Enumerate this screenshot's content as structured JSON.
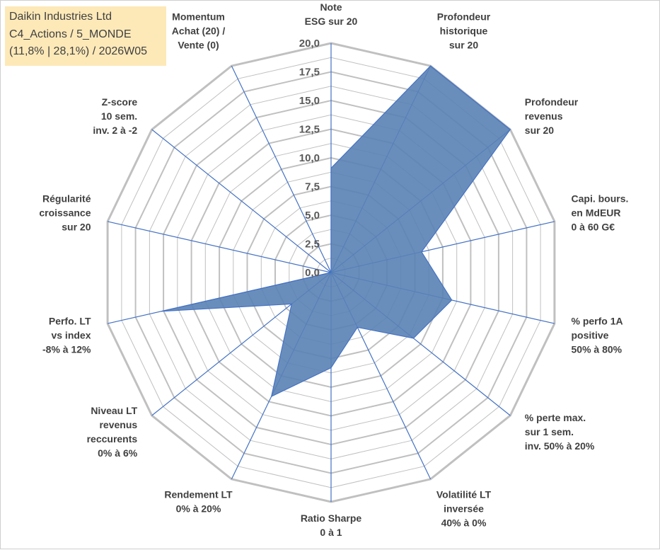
{
  "title_box": {
    "line1": "Daikin Industries Ltd",
    "line2": "C4_Actions / 5_MONDE",
    "line3": "(11,8% | 28,1%) / 2026W05"
  },
  "colors": {
    "fill": "#5a82b5",
    "stroke": "#4472c4",
    "grid": "#c0c0c0",
    "spoke": "#4472c4",
    "title_bg": "#fde9b8"
  },
  "chart_data": {
    "type": "radar",
    "rlim": [
      0,
      20
    ],
    "grid": true,
    "tick_labels": [
      "0,0",
      "2,5",
      "5,0",
      "7,5",
      "10,0",
      "12,5",
      "15,0",
      "17,5",
      "20,0"
    ],
    "axes": [
      {
        "label": [
          "Note",
          "ESG sur 20"
        ],
        "value": 9.1
      },
      {
        "label": [
          "Profondeur",
          "historique",
          "sur 20"
        ],
        "value": 20
      },
      {
        "label": [
          "Profondeur",
          "revenus",
          "sur 20"
        ],
        "value": 20
      },
      {
        "label": [
          "Capi. bours.",
          "en MdEUR",
          "0 à 60 G€"
        ],
        "value": 8.1
      },
      {
        "label": [
          "% perfo 1A",
          "positive",
          "50% à 80%"
        ],
        "value": 10.8
      },
      {
        "label": [
          "% perte max.",
          "sur 1 sem.",
          "inv. 50% à 20%"
        ],
        "value": 9.2
      },
      {
        "label": [
          "Volatilité LT",
          "inversée",
          "40% à 0%"
        ],
        "value": 5.3
      },
      {
        "label": [
          "Ratio Sharpe",
          "0 à 1"
        ],
        "value": 8.3
      },
      {
        "label": [
          "Rendement LT",
          "0% à 20%"
        ],
        "value": 12.0
      },
      {
        "label": [
          "Niveau LT",
          "revenus",
          "reccurents",
          "0% à 6%"
        ],
        "value": 4.4
      },
      {
        "label": [
          "Perfo. LT",
          "vs index",
          "-8% à 12%"
        ],
        "value": 15.2
      },
      {
        "label": [
          "Régularité",
          "croissance",
          "sur 20"
        ],
        "value": 0
      },
      {
        "label": [
          "Z-score",
          "10 sem.",
          "inv. 2 à -2"
        ],
        "value": 0
      },
      {
        "label": [
          "Momentum",
          "Achat (20) /",
          "Vente (0)"
        ],
        "value": 0
      }
    ]
  }
}
